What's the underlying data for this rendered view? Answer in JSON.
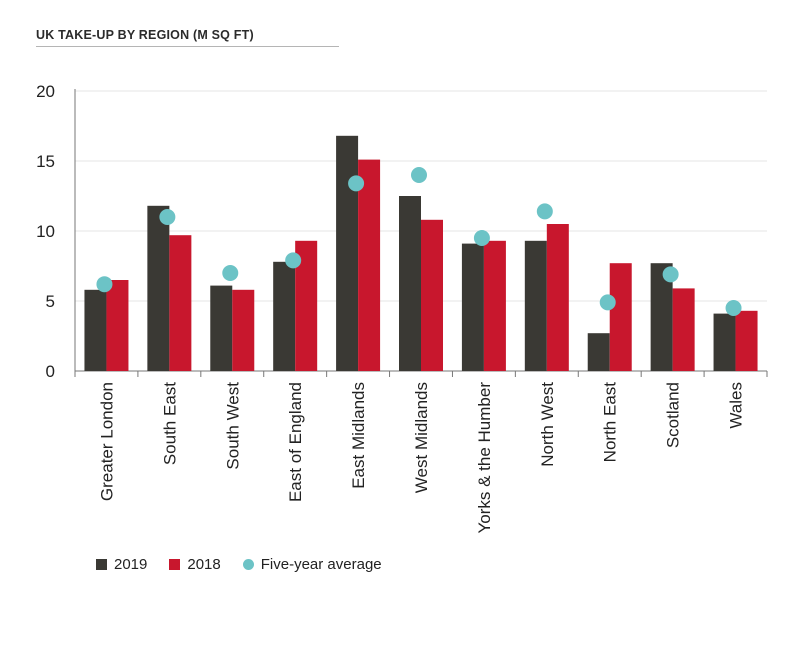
{
  "chart_data": {
    "type": "bar",
    "title": "UK TAKE-UP BY REGION (M SQ FT)",
    "categories": [
      "Greater London",
      "South East",
      "South West",
      "East of England",
      "East Midlands",
      "West Midlands",
      "Yorks & the Humber",
      "North West",
      "North East",
      "Scotland",
      "Wales"
    ],
    "series": [
      {
        "name": "2019",
        "color": "#3a3934",
        "values": [
          5.8,
          11.8,
          6.1,
          7.8,
          16.8,
          12.5,
          9.1,
          9.3,
          2.7,
          7.7,
          4.1
        ]
      },
      {
        "name": "2018",
        "color": "#c8172d",
        "values": [
          6.5,
          9.7,
          5.8,
          9.3,
          15.1,
          10.8,
          9.3,
          10.5,
          7.7,
          5.9,
          4.3
        ]
      },
      {
        "name": "Five-year average",
        "type": "scatter",
        "color": "#6cc3c6",
        "values": [
          6.2,
          11.0,
          7.0,
          7.9,
          13.4,
          14.0,
          9.5,
          11.4,
          4.9,
          6.9,
          4.5
        ]
      }
    ],
    "yticks": [
      0,
      5,
      10,
      15,
      20
    ],
    "ylim": [
      0,
      20
    ],
    "grid": true,
    "legend_position": "bottom-left"
  }
}
